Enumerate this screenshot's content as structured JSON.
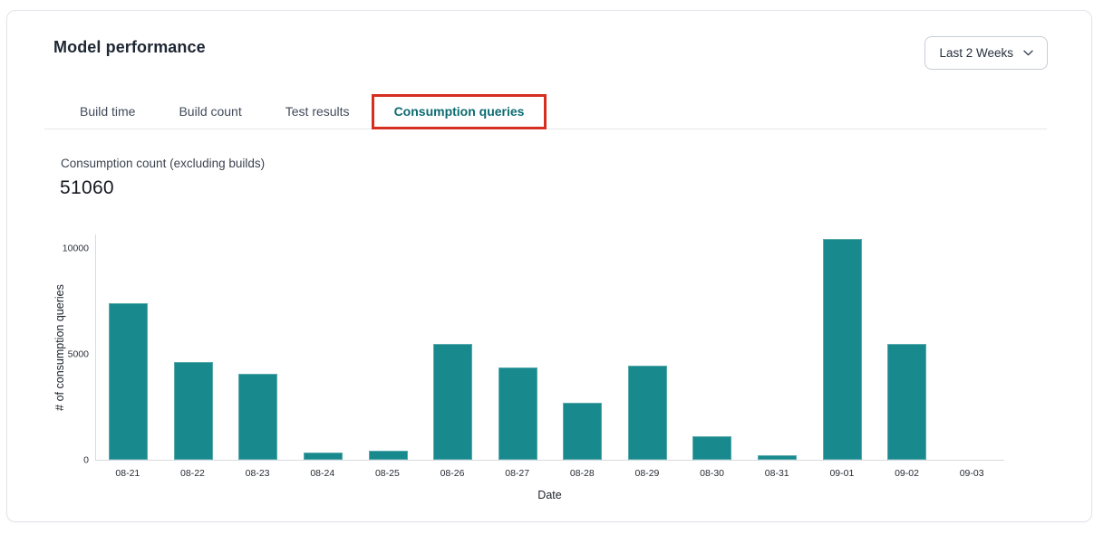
{
  "header": {
    "title": "Model performance",
    "range_selector": {
      "value": "Last 2 Weeks"
    }
  },
  "tabs": [
    {
      "label": "Build time",
      "active": false
    },
    {
      "label": "Build count",
      "active": false
    },
    {
      "label": "Test results",
      "active": false
    },
    {
      "label": "Consumption queries",
      "active": true,
      "annotated": true
    }
  ],
  "metric": {
    "label": "Consumption count (excluding builds)",
    "value": "51060"
  },
  "chart_data": {
    "type": "bar",
    "categories": [
      "08-21",
      "08-22",
      "08-23",
      "08-24",
      "08-25",
      "08-26",
      "08-27",
      "08-28",
      "08-29",
      "08-30",
      "08-31",
      "09-01",
      "09-02",
      "09-03"
    ],
    "values": [
      7400,
      4600,
      4050,
      330,
      440,
      5470,
      4350,
      2700,
      4450,
      1130,
      230,
      10420,
      5490,
      0
    ],
    "xlabel": "Date",
    "ylabel": "# of consumption queries",
    "yticks": [
      0,
      5000,
      10000
    ],
    "ylim": [
      0,
      10700
    ],
    "grid": false,
    "legend": "none",
    "bar_color": "#18898d"
  },
  "colors": {
    "accent_teal": "#0c6b70",
    "bar_teal": "#18898d",
    "annotation_red": "#d62e20",
    "card_border": "#e1e4ea",
    "axis_line": "#d8dbe0"
  }
}
